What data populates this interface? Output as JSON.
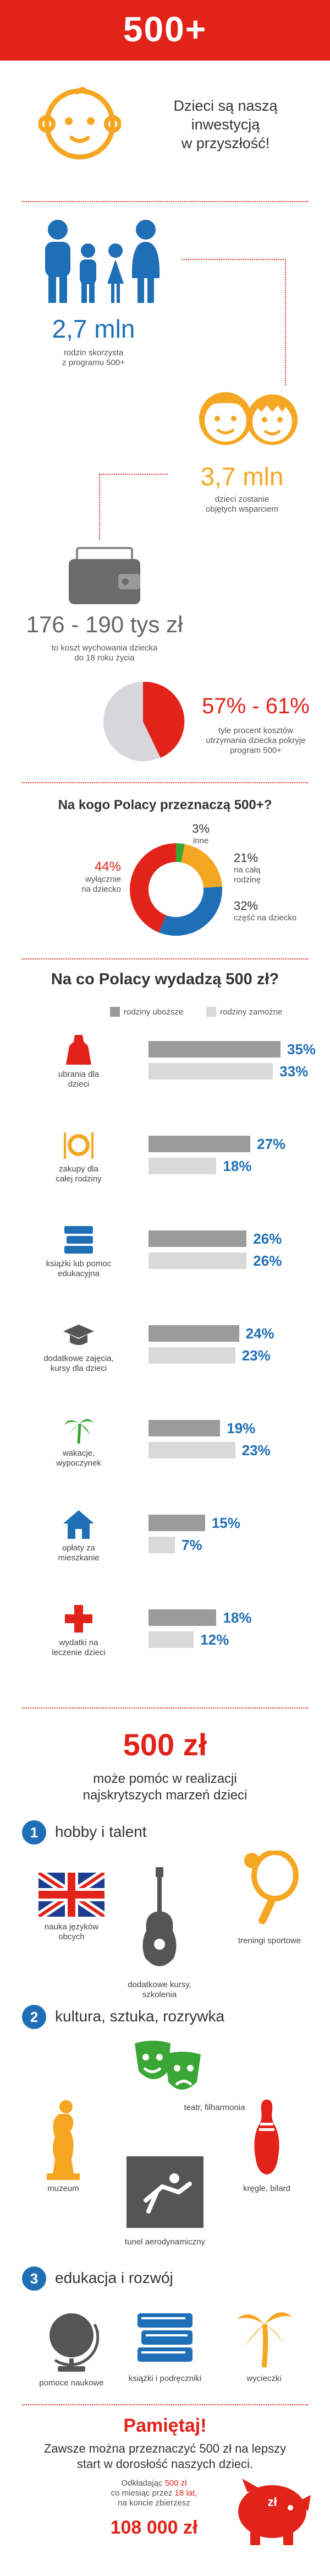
{
  "header": {
    "title": "500+"
  },
  "intro": {
    "text_line1": "Dzieci są naszą",
    "text_line2": "inwestycją",
    "text_line3": "w przyszłość!"
  },
  "stats": {
    "families": {
      "value": "2,7 mln",
      "desc_line1": "rodzin skorzysta",
      "desc_line2": "z programu 500+"
    },
    "children": {
      "value": "3,7 mln",
      "desc_line1": "dzieci zostanie",
      "desc_line2": "objętych wsparciem"
    },
    "cost": {
      "value": "176 - 190 tys zł",
      "desc_line1": "to koszt wychowania dziecka",
      "desc_line2": "do 18 roku życia"
    },
    "percent": {
      "value": "57% - 61%",
      "desc_line1": "tyle procent kosztów",
      "desc_line2": "utrzymania dziecka pokryje",
      "desc_line3": "program 500+"
    }
  },
  "donut_section": {
    "title": "Na kogo Polacy przeznaczą 500+?",
    "labels": {
      "child_pct": "44%",
      "child_line1": "wyłącznie",
      "child_line2": "na dziecko",
      "other_pct": "3%",
      "other_text": "inne",
      "family_pct": "21%",
      "family_line1": "na całą",
      "family_line2": "rodzinę",
      "part_pct": "32%",
      "part_text": "część na dziecko"
    }
  },
  "bars_section": {
    "title": "Na co Polacy wydadzą 500 zł?",
    "legend_poor": "rodziny uboższe",
    "legend_rich": "rodziny zamożne",
    "categories": [
      {
        "label_line1": "ubrania dla",
        "label_line2": "dzieci",
        "poor": "35%",
        "rich": "33%"
      },
      {
        "label_line1": "zakupy dla",
        "label_line2": "całej rodziny",
        "poor": "27%",
        "rich": "18%"
      },
      {
        "label_line1": "książki lub pomoc",
        "label_line2": "edukacyjna",
        "poor": "26%",
        "rich": "26%"
      },
      {
        "label_line1": "dodatkowe zajęcia,",
        "label_line2": "kursy dla dzieci",
        "poor": "24%",
        "rich": "23%"
      },
      {
        "label_line1": "wakacje,",
        "label_line2": "wypoczynek",
        "poor": "19%",
        "rich": "23%"
      },
      {
        "label_line1": "opłaty za",
        "label_line2": "mieszkanie",
        "poor": "15%",
        "rich": "7%"
      },
      {
        "label_line1": "wydatki na",
        "label_line2": "leczenie dzieci",
        "poor": "18%",
        "rich": "12%"
      }
    ]
  },
  "chart_data": {
    "type": "bar",
    "title": "Na co Polacy wydadzą 500 zł?",
    "categories": [
      "ubrania dla dzieci",
      "zakupy dla całej rodziny",
      "książki lub pomoc edukacyjna",
      "dodatkowe zajęcia, kursy dla dzieci",
      "wakacje, wypoczynek",
      "opłaty za mieszkanie",
      "wydatki na leczenie dzieci"
    ],
    "series": [
      {
        "name": "rodziny uboższe",
        "values": [
          35,
          27,
          26,
          24,
          19,
          15,
          18
        ]
      },
      {
        "name": "rodziny zamożne",
        "values": [
          33,
          18,
          26,
          23,
          23,
          7,
          12
        ]
      }
    ],
    "donut": {
      "type": "pie",
      "categories": [
        "wyłącznie na dziecko",
        "inne",
        "na całą rodzinę",
        "część na dziecko"
      ],
      "values": [
        44,
        3,
        21,
        32
      ]
    }
  },
  "dreams": {
    "title": "500 zł",
    "subtitle_line1": "może pomóc w realizacji",
    "subtitle_line2": "najskrytszych marzeń dzieci",
    "sections": [
      {
        "num": "1",
        "title": "hobby i talent",
        "items": [
          "nauka języków obcych",
          "dodatkowe kursy, szkolenia",
          "treningi sportowe"
        ]
      },
      {
        "num": "2",
        "title": "kultura, sztuka, rozrywka",
        "items": [
          "teatr, filharmonia",
          "muzeum",
          "kręgle, bilard",
          "tunel aerodynamiczny"
        ]
      },
      {
        "num": "3",
        "title": "edukacja i rozwój",
        "items": [
          "pomoce naukowe",
          "książki i podręczniki",
          "wycieczki"
        ]
      }
    ]
  },
  "footer": {
    "title": "Pamiętaj!",
    "text_line1": "Zawsze można przeznaczyć 500 zł na lepszy",
    "text_line2": "start w dorosłość naszych dzieci.",
    "note_line1_a": "Odkładając ",
    "note_amount": "500 zł",
    "note_line2_a": "co miesiąc przez ",
    "note_years": "18 lat,",
    "note_line3": "na koncie zbierzesz",
    "total": "108 000 zł",
    "piggy_label": "zł"
  },
  "colors": {
    "red": "#e2231a",
    "blue": "#1f6fb6",
    "orange": "#f5a623",
    "green": "#3aa635"
  }
}
